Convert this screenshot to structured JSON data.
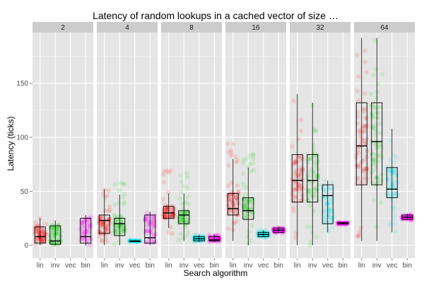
{
  "chart_data": {
    "type": "boxplot",
    "title": "Latency of random lookups in a cached vector of size …",
    "xlabel": "Search algorithm",
    "ylabel": "Latency (ticks)",
    "ylim": [
      -12,
      197
    ],
    "y_ticks": [
      0,
      50,
      100,
      150
    ],
    "categories": [
      "lin",
      "inv",
      "vec",
      "bin"
    ],
    "colors": {
      "lin": "#ff0000",
      "inv": "#00cc00",
      "vec": "#00e5ee",
      "bin": "#ff00ff"
    },
    "panel_bg": "#e5e5e5",
    "strip_bg": "#cccccc",
    "grid": true,
    "facets": [
      {
        "label": "2",
        "boxes": [
          {
            "cat": "lin",
            "min": 0,
            "q1": 2,
            "median": 8,
            "q3": 17,
            "max": 25,
            "pmin": 0,
            "pmax": 25
          },
          {
            "cat": "inv",
            "min": 0,
            "q1": 1,
            "median": 4,
            "q3": 18,
            "max": 23,
            "pmin": 0,
            "pmax": 23
          },
          {
            "cat": "bin",
            "min": 0,
            "q1": 2,
            "median": 8,
            "q3": 25,
            "max": 28,
            "pmin": 0,
            "pmax": 28
          }
        ]
      },
      {
        "label": "4",
        "boxes": [
          {
            "cat": "lin",
            "min": 0,
            "q1": 11,
            "median": 23,
            "q3": 28,
            "max": 52,
            "pmin": 0,
            "pmax": 60
          },
          {
            "cat": "inv",
            "min": 0,
            "q1": 9,
            "median": 20,
            "q3": 25,
            "max": 47,
            "pmin": 0,
            "pmax": 60
          },
          {
            "cat": "vec",
            "min": 3,
            "q1": 4,
            "median": 4,
            "q3": 4,
            "max": 5,
            "pmin": 3,
            "pmax": 5
          },
          {
            "cat": "bin",
            "min": 0,
            "q1": 2,
            "median": 7,
            "q3": 28,
            "max": 31,
            "pmin": 0,
            "pmax": 31
          }
        ]
      },
      {
        "label": "8",
        "boxes": [
          {
            "cat": "lin",
            "min": 16,
            "q1": 25,
            "median": 30,
            "q3": 36,
            "max": 48,
            "pmin": 10,
            "pmax": 72
          },
          {
            "cat": "inv",
            "min": 4,
            "q1": 20,
            "median": 28,
            "q3": 32,
            "max": 48,
            "pmin": 4,
            "pmax": 68
          },
          {
            "cat": "vec",
            "min": 3,
            "q1": 4,
            "median": 6,
            "q3": 8,
            "max": 10,
            "pmin": 3,
            "pmax": 10
          },
          {
            "cat": "bin",
            "min": 3,
            "q1": 4,
            "median": 5,
            "q3": 8,
            "max": 10,
            "pmin": 3,
            "pmax": 10
          }
        ]
      },
      {
        "label": "16",
        "boxes": [
          {
            "cat": "lin",
            "min": 4,
            "q1": 28,
            "median": 34,
            "q3": 48,
            "max": 80,
            "pmin": 4,
            "pmax": 96
          },
          {
            "cat": "inv",
            "min": 0,
            "q1": 24,
            "median": 32,
            "q3": 44,
            "max": 72,
            "pmin": 0,
            "pmax": 88
          },
          {
            "cat": "vec",
            "min": 8,
            "q1": 8,
            "median": 10,
            "q3": 12,
            "max": 14,
            "pmin": 7,
            "pmax": 15
          },
          {
            "cat": "bin",
            "min": 11,
            "q1": 12,
            "median": 14,
            "q3": 16,
            "max": 17,
            "pmin": 11,
            "pmax": 17
          }
        ]
      },
      {
        "label": "32",
        "boxes": [
          {
            "cat": "lin",
            "min": 0,
            "q1": 40,
            "median": 60,
            "q3": 84,
            "max": 140,
            "pmin": 0,
            "pmax": 134
          },
          {
            "cat": "inv",
            "min": 0,
            "q1": 40,
            "median": 60,
            "q3": 84,
            "max": 132,
            "pmin": 0,
            "pmax": 130
          },
          {
            "cat": "vec",
            "min": 12,
            "q1": 20,
            "median": 46,
            "q3": 56,
            "max": 60,
            "pmin": 12,
            "pmax": 60
          },
          {
            "cat": "bin",
            "min": 19,
            "q1": 20,
            "median": 20,
            "q3": 21,
            "max": 21,
            "pmin": 19,
            "pmax": 21
          }
        ]
      },
      {
        "label": "64",
        "boxes": [
          {
            "cat": "lin",
            "min": 4,
            "q1": 56,
            "median": 92,
            "q3": 132,
            "max": 192,
            "pmin": 4,
            "pmax": 192
          },
          {
            "cat": "inv",
            "min": 4,
            "q1": 56,
            "median": 96,
            "q3": 132,
            "max": 192,
            "pmin": 4,
            "pmax": 192
          },
          {
            "cat": "vec",
            "min": 12,
            "q1": 44,
            "median": 52,
            "q3": 72,
            "max": 108,
            "pmin": 12,
            "pmax": 108
          },
          {
            "cat": "bin",
            "min": 23,
            "q1": 24,
            "median": 26,
            "q3": 28,
            "max": 29,
            "pmin": 23,
            "pmax": 29
          }
        ]
      }
    ]
  }
}
